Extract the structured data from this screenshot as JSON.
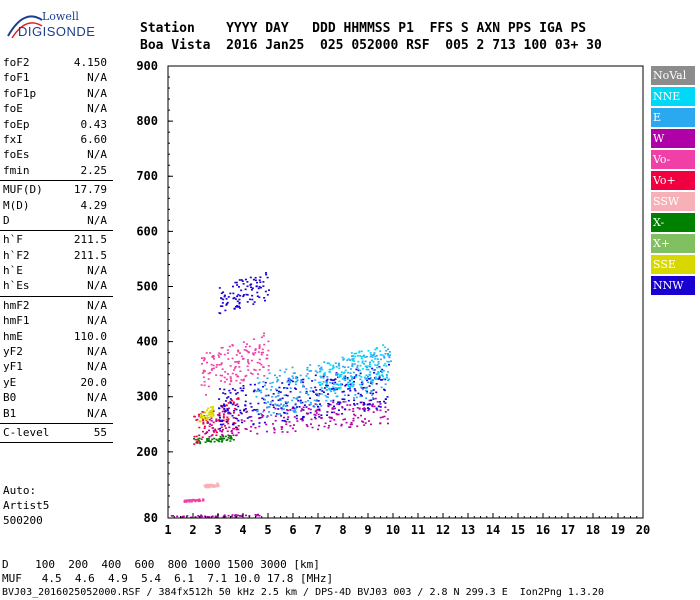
{
  "logo": {
    "line1": "Lowell",
    "line2": "DIGISONDE"
  },
  "header": {
    "line1": "Station    YYYY DAY   DDD HHMMSS P1  FFS S AXN PPS IGA PS",
    "line2": "Boa Vista  2016 Jan25  025 052000 RSF  005 2 713 100 03+ 30"
  },
  "params": [
    [
      {
        "k": "foF2",
        "v": "4.150"
      },
      {
        "k": "foF1",
        "v": "N/A"
      },
      {
        "k": "foF1p",
        "v": "N/A"
      },
      {
        "k": "foE",
        "v": "N/A"
      },
      {
        "k": "foEp",
        "v": "0.43"
      },
      {
        "k": "fxI",
        "v": "6.60"
      },
      {
        "k": "foEs",
        "v": "N/A"
      },
      {
        "k": "fmin",
        "v": "2.25"
      }
    ],
    [
      {
        "k": "MUF(D)",
        "v": "17.79"
      },
      {
        "k": "M(D)",
        "v": "4.29"
      },
      {
        "k": "D",
        "v": "N/A"
      }
    ],
    [
      {
        "k": "h`F",
        "v": "211.5"
      },
      {
        "k": "h`F2",
        "v": "211.5"
      },
      {
        "k": "h`E",
        "v": "N/A"
      },
      {
        "k": "h`Es",
        "v": "N/A"
      }
    ],
    [
      {
        "k": "hmF2",
        "v": "N/A"
      },
      {
        "k": "hmF1",
        "v": "N/A"
      },
      {
        "k": "hmE",
        "v": "110.0"
      },
      {
        "k": "yF2",
        "v": "N/A"
      },
      {
        "k": "yF1",
        "v": "N/A"
      },
      {
        "k": "yE",
        "v": "20.0"
      },
      {
        "k": "B0",
        "v": "N/A"
      },
      {
        "k": "B1",
        "v": "N/A"
      }
    ],
    [
      {
        "k": "C-level",
        "v": "55"
      }
    ]
  ],
  "auto": {
    "line1": "Auto:",
    "line2": "Artist5",
    "line3": "500200"
  },
  "legend": [
    {
      "label": "NoVal",
      "color": "#8c8c8c"
    },
    {
      "label": "NNE",
      "color": "#00d8f8"
    },
    {
      "label": "E",
      "color": "#2aa8f0"
    },
    {
      "label": "W",
      "color": "#b000a8"
    },
    {
      "label": "Vo-",
      "color": "#f040a8"
    },
    {
      "label": "Vo+",
      "color": "#f00040"
    },
    {
      "label": "SSW",
      "color": "#f8b0b8"
    },
    {
      "label": "X-",
      "color": "#008000"
    },
    {
      "label": "X+",
      "color": "#80c060"
    },
    {
      "label": "SSE",
      "color": "#d8d800"
    },
    {
      "label": "NNW",
      "color": "#1800d0"
    }
  ],
  "footer": {
    "d_row": "D    100  200  400  600  800 1000 1500 3000 [km]",
    "muf_row": "MUF   4.5  4.6  4.9  5.4  6.1  7.1 10.0 17.8 [MHz]",
    "file": "BVJ03_2016025052000.RSF / 384fx512h 50 kHz 2.5 km / DPS-4D BVJ03 003 / 2.8 N 299.3 E  Ion2Png 1.3.20"
  },
  "chart_data": {
    "type": "scatter",
    "title": "",
    "xlabel": "",
    "ylabel": "",
    "xlim": [
      1,
      20
    ],
    "ylim": [
      80,
      900
    ],
    "x_ticks": [
      "1",
      "2",
      "3",
      "4",
      "5",
      "6",
      "7",
      "8",
      "9",
      "10",
      "11",
      "12",
      "13",
      "14",
      "15",
      "16",
      "17",
      "18",
      "19",
      "20"
    ],
    "y_ticks": [
      "80",
      "200",
      "300",
      "400",
      "500",
      "600",
      "700",
      "800",
      "900"
    ],
    "grid": false,
    "legend_position": "right",
    "clusters": [
      {
        "series": "X-",
        "x": [
          2.0,
          3.6
        ],
        "y": [
          215,
          232
        ]
      },
      {
        "series": "Vo+",
        "x": [
          2.0,
          3.8
        ],
        "y": [
          215,
          300
        ]
      },
      {
        "series": "W",
        "x": [
          2.2,
          9.8
        ],
        "y": [
          225,
          300
        ]
      },
      {
        "series": "NNW",
        "x": [
          3.0,
          9.8
        ],
        "y": [
          240,
          360
        ]
      },
      {
        "series": "E",
        "x": [
          4.5,
          9.9
        ],
        "y": [
          260,
          390
        ]
      },
      {
        "series": "NNE",
        "x": [
          7.0,
          9.8
        ],
        "y": [
          300,
          400
        ]
      },
      {
        "series": "Vo-",
        "x": [
          2.3,
          5.0
        ],
        "y": [
          300,
          420
        ]
      },
      {
        "series": "NNW",
        "x": [
          3.0,
          5.0
        ],
        "y": [
          450,
          530
        ]
      },
      {
        "series": "SSE",
        "x": [
          2.2,
          2.8
        ],
        "y": [
          255,
          285
        ]
      },
      {
        "series": "SSW",
        "x": [
          2.4,
          3.0
        ],
        "y": [
          135,
          145
        ]
      },
      {
        "series": "Vo-",
        "x": [
          1.6,
          2.4
        ],
        "y": [
          110,
          116
        ]
      },
      {
        "series": "W",
        "x": [
          1.1,
          4.8
        ],
        "y": [
          82,
          88
        ]
      }
    ]
  }
}
